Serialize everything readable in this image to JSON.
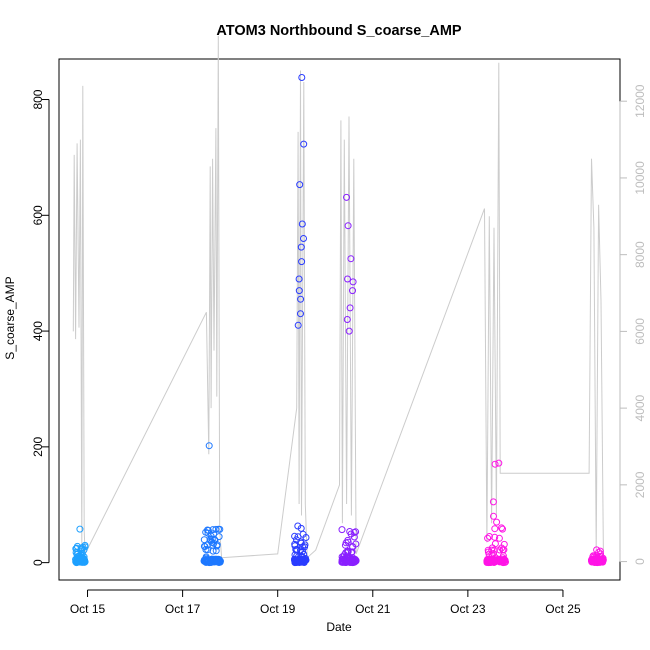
{
  "chart_data": {
    "type": "scatter",
    "title": "ATOM3 Northbound S_coarse_AMP",
    "xlabel": "Date",
    "ylabel": "S_coarse_AMP",
    "x_ticks": [
      "Oct 15",
      "Oct 17",
      "Oct 19",
      "Oct 21",
      "Oct 23",
      "Oct 25"
    ],
    "x_tick_days": [
      15,
      17,
      19,
      21,
      23,
      25
    ],
    "xlim_days": [
      14.4,
      26.2
    ],
    "ylim": [
      -30,
      870
    ],
    "y_ticks": [
      0,
      200,
      400,
      600,
      800
    ],
    "y2_ticks": [
      0,
      2000,
      4000,
      6000,
      8000,
      10000,
      12000
    ],
    "y2lim": [
      -480,
      13100
    ],
    "grid": false,
    "colors": {
      "line": "#cccccc",
      "right_axis": "#bdbdbd",
      "points_oct14": "#1ea0ff",
      "points_oct17": "#1e78ff",
      "points_oct19": "#2a3cff",
      "points_oct20": "#8a20ff",
      "points_oct23": "#ff14e6",
      "points_oct25": "#ff14e6"
    },
    "series": [
      {
        "axis": "left",
        "clusters": [
          {
            "x_start": 14.75,
            "x_end": 14.95,
            "color": "#1ea0ff",
            "max": 58,
            "spikes": [
              58,
              25,
              12,
              10,
              8
            ]
          },
          {
            "x_start": 17.45,
            "x_end": 17.8,
            "color": "#1e78ff",
            "max": 202,
            "spikes": [
              202,
              57,
              50,
              40,
              35,
              30
            ]
          },
          {
            "x_start": 19.35,
            "x_end": 19.6,
            "color": "#2a3cff",
            "max": 838,
            "spikes": [
              838,
              723,
              653,
              585,
              560,
              545,
              520,
              490,
              470,
              455,
              430,
              410
            ]
          },
          {
            "x_start": 20.35,
            "x_end": 20.65,
            "color": "#8a20ff",
            "max": 631,
            "spikes": [
              631,
              582,
              525,
              490,
              485,
              470,
              440,
              420,
              400
            ]
          },
          {
            "x_start": 23.4,
            "x_end": 23.8,
            "color": "#ff14e6",
            "max": 172,
            "spikes": [
              172,
              170,
              105,
              80,
              70,
              60
            ]
          },
          {
            "x_start": 25.6,
            "x_end": 25.85,
            "color": "#ff14e6",
            "max": 22,
            "spikes": [
              22,
              20,
              18,
              15
            ]
          }
        ]
      },
      {
        "axis": "right",
        "line_points": [
          [
            14.7,
            6000
          ],
          [
            14.72,
            10600
          ],
          [
            14.75,
            5800
          ],
          [
            14.78,
            10900
          ],
          [
            14.82,
            6100
          ],
          [
            14.85,
            11000
          ],
          [
            14.88,
            300
          ],
          [
            14.9,
            12400
          ],
          [
            14.93,
            800
          ],
          [
            14.95,
            200
          ],
          [
            17.5,
            6500
          ],
          [
            17.55,
            2800
          ],
          [
            17.58,
            10300
          ],
          [
            17.6,
            4000
          ],
          [
            17.63,
            10500
          ],
          [
            17.66,
            5500
          ],
          [
            17.7,
            11300
          ],
          [
            17.72,
            4300
          ],
          [
            17.75,
            13700
          ],
          [
            17.78,
            800
          ],
          [
            17.82,
            100
          ],
          [
            19.0,
            200
          ],
          [
            19.4,
            4000
          ],
          [
            19.43,
            11200
          ],
          [
            19.45,
            1500
          ],
          [
            19.48,
            12800
          ],
          [
            19.5,
            1200
          ],
          [
            19.55,
            12500
          ],
          [
            19.58,
            1500
          ],
          [
            19.62,
            100
          ],
          [
            19.8,
            300
          ],
          [
            20.3,
            2000
          ],
          [
            20.33,
            11500
          ],
          [
            20.36,
            1000
          ],
          [
            20.4,
            11000
          ],
          [
            20.45,
            1500
          ],
          [
            20.5,
            11600
          ],
          [
            20.55,
            1200
          ],
          [
            20.6,
            10500
          ],
          [
            20.65,
            200
          ],
          [
            23.35,
            9200
          ],
          [
            23.4,
            500
          ],
          [
            23.45,
            9000
          ],
          [
            23.5,
            1000
          ],
          [
            23.55,
            8700
          ],
          [
            23.6,
            1200
          ],
          [
            23.65,
            13000
          ],
          [
            23.68,
            2300
          ],
          [
            25.55,
            2300
          ],
          [
            25.6,
            10500
          ],
          [
            25.65,
            8700
          ],
          [
            25.7,
            300
          ],
          [
            25.75,
            9300
          ],
          [
            25.8,
            6800
          ],
          [
            25.85,
            200
          ]
        ]
      }
    ]
  }
}
